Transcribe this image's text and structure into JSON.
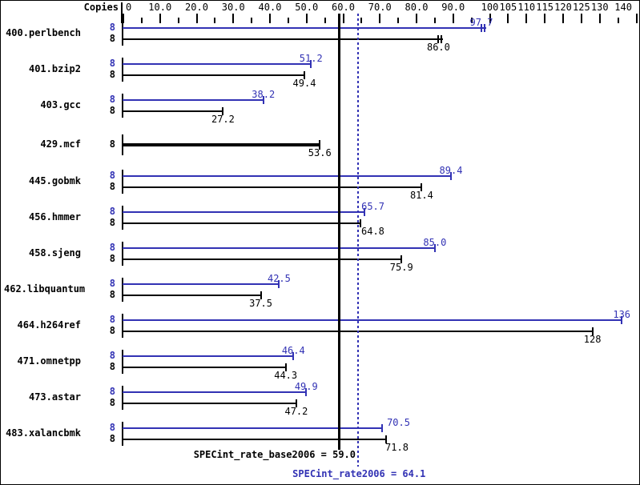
{
  "chart_data": {
    "type": "bar",
    "orientation": "horizontal",
    "copies_header": "Copies",
    "colors": {
      "peak": "#3232b4",
      "base": "#000000"
    },
    "axis": {
      "min": 0,
      "max": 140,
      "major_ticks": [
        0,
        10,
        20,
        30,
        40,
        50,
        60,
        70,
        80,
        90,
        100,
        105,
        110,
        115,
        120,
        125,
        130,
        140
      ],
      "minor_ticks": [
        5,
        15,
        25,
        35,
        45,
        55,
        65,
        75,
        85,
        95,
        135
      ],
      "labels": [
        {
          "v": 0,
          "text": "0"
        },
        {
          "v": 10,
          "text": "10.0"
        },
        {
          "v": 20,
          "text": "20.0"
        },
        {
          "v": 30,
          "text": "30.0"
        },
        {
          "v": 40,
          "text": "40.0"
        },
        {
          "v": 50,
          "text": "50.0"
        },
        {
          "v": 60,
          "text": "60.0"
        },
        {
          "v": 70,
          "text": "70.0"
        },
        {
          "v": 80,
          "text": "80.0"
        },
        {
          "v": 90,
          "text": "90.0"
        },
        {
          "v": 100,
          "text": "100"
        },
        {
          "v": 105,
          "text": "105"
        },
        {
          "v": 110,
          "text": "110"
        },
        {
          "v": 115,
          "text": "115"
        },
        {
          "v": 120,
          "text": "120"
        },
        {
          "v": 125,
          "text": "125"
        },
        {
          "v": 130,
          "text": "130"
        },
        {
          "v": 140,
          "text": "140"
        }
      ]
    },
    "benchmarks": [
      {
        "name": "400.perlbench",
        "copies": 8,
        "peak": 97.7,
        "peak_label": "97.7",
        "base": 86.0,
        "base_label": "86.0",
        "run_marks": true
      },
      {
        "name": "401.bzip2",
        "copies": 8,
        "peak": 51.2,
        "peak_label": "51.2",
        "base": 49.4,
        "base_label": "49.4"
      },
      {
        "name": "403.gcc",
        "copies": 8,
        "peak": 38.2,
        "peak_label": "38.2",
        "base": 27.2,
        "base_label": "27.2"
      },
      {
        "name": "429.mcf",
        "copies": 8,
        "peak": null,
        "peak_label": null,
        "base": 53.6,
        "base_label": "53.6",
        "base_only_bold": true
      },
      {
        "name": "445.gobmk",
        "copies": 8,
        "peak": 89.4,
        "peak_label": "89.4",
        "base": 81.4,
        "base_label": "81.4"
      },
      {
        "name": "456.hmmer",
        "copies": 8,
        "peak": 65.7,
        "peak_label": "65.7",
        "base": 64.8,
        "base_label": "64.8"
      },
      {
        "name": "458.sjeng",
        "copies": 8,
        "peak": 85.0,
        "peak_label": "85.0",
        "base": 75.9,
        "base_label": "75.9"
      },
      {
        "name": "462.libquantum",
        "copies": 8,
        "peak": 42.5,
        "peak_label": "42.5",
        "base": 37.5,
        "base_label": "37.5"
      },
      {
        "name": "464.h264ref",
        "copies": 8,
        "peak": 136,
        "peak_label": "136",
        "base": 128,
        "base_label": "128"
      },
      {
        "name": "471.omnetpp",
        "copies": 8,
        "peak": 46.4,
        "peak_label": "46.4",
        "base": 44.3,
        "base_label": "44.3"
      },
      {
        "name": "473.astar",
        "copies": 8,
        "peak": 49.9,
        "peak_label": "49.9",
        "base": 47.2,
        "base_label": "47.2"
      },
      {
        "name": "483.xalancbmk",
        "copies": 8,
        "peak": 70.5,
        "peak_label": "70.5",
        "base": 71.8,
        "base_label": "71.8"
      }
    ],
    "means": {
      "base": {
        "value": 59.0,
        "text": "SPECint_rate_base2006 = 59.0"
      },
      "peak": {
        "value": 64.1,
        "text": "SPECint_rate2006 = 64.1"
      }
    }
  }
}
